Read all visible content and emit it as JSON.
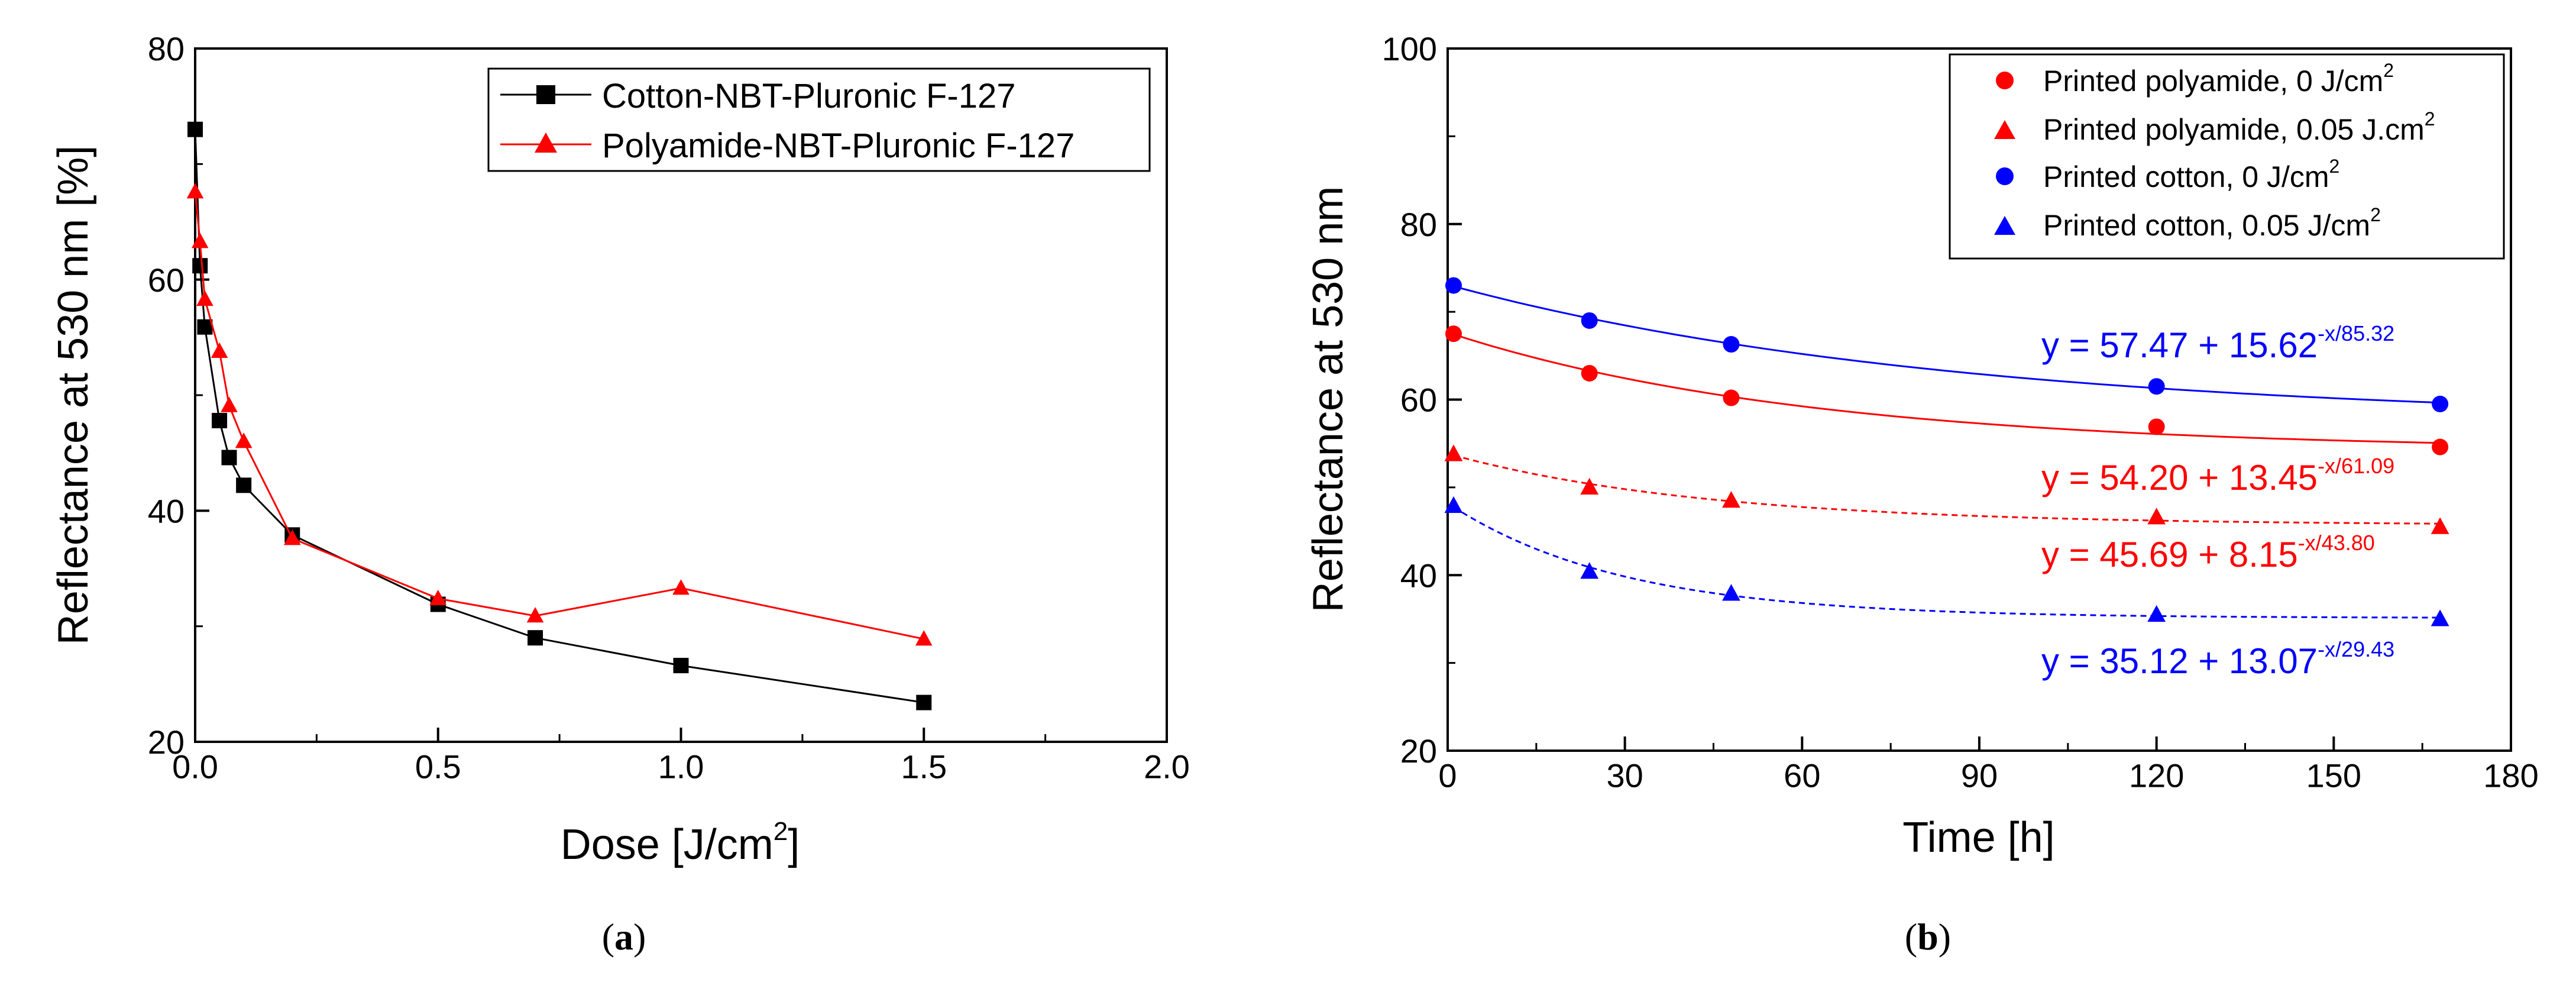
{
  "chart_data": [
    {
      "id": "a",
      "type": "line",
      "caption_letter": "a",
      "xlabel": "Dose [J/cm",
      "xlabel_sup": "2",
      "xlabel_end": "]",
      "ylabel": "Reflectance at 530 nm [%]",
      "xlim": [
        0,
        2.0
      ],
      "ylim": [
        20,
        80
      ],
      "xticks": [
        0.0,
        0.5,
        1.0,
        1.5,
        2.0
      ],
      "xtick_labels": [
        "0.0",
        "0.5",
        "1.0",
        "1.5",
        "2.0"
      ],
      "yticks": [
        20,
        40,
        60,
        80
      ],
      "ytick_labels": [
        "20",
        "40",
        "60",
        "80"
      ],
      "series": [
        {
          "name": "Cotton-NBT-Pluronic F-127",
          "color": "#000000",
          "marker": "square",
          "x": [
            0,
            0.01,
            0.02,
            0.05,
            0.07,
            0.1,
            0.2,
            0.5,
            0.7,
            1.0,
            1.5
          ],
          "y": [
            73.0,
            61.2,
            55.9,
            47.8,
            44.6,
            42.2,
            37.9,
            31.9,
            29.0,
            26.6,
            23.4
          ]
        },
        {
          "name": "Polyamide-NBT-Pluronic F-127",
          "color": "#ff0000",
          "marker": "triangle",
          "x": [
            0,
            0.01,
            0.02,
            0.05,
            0.07,
            0.1,
            0.2,
            0.5,
            0.7,
            1.0,
            1.5
          ],
          "y": [
            67.6,
            63.3,
            58.3,
            53.8,
            49.1,
            46.0,
            37.6,
            32.4,
            30.9,
            33.3,
            28.9
          ]
        }
      ]
    },
    {
      "id": "b",
      "type": "scatter",
      "caption_letter": "b",
      "xlabel": "Time [h]",
      "ylabel": "Reflectance at 530 nm",
      "xlim": [
        0,
        180
      ],
      "ylim": [
        20,
        100
      ],
      "xticks": [
        0,
        30,
        60,
        90,
        120,
        150,
        180
      ],
      "xtick_labels": [
        "0",
        "30",
        "60",
        "90",
        "120",
        "150",
        "180"
      ],
      "yticks": [
        20,
        40,
        60,
        80,
        100
      ],
      "ytick_labels": [
        "20",
        "40",
        "60",
        "80",
        "100"
      ],
      "series": [
        {
          "name": "Printed polyamide, 0 J/cm",
          "name_sup": "2",
          "color": "#ff0000",
          "marker": "circle",
          "x": [
            1,
            24,
            48,
            120,
            168
          ],
          "y": [
            67.5,
            63.0,
            60.2,
            56.9,
            54.6
          ],
          "fit": {
            "a": 54.2,
            "b": 13.45,
            "c": 61.09,
            "dash": false,
            "equation": "y = 54.20 + 13.45",
            "equation_sup": "-x/61.09"
          }
        },
        {
          "name": "Printed polyamide, 0.05 J.cm",
          "name_sup": "2",
          "color": "#ff0000",
          "marker": "triangle",
          "x": [
            1,
            24,
            48,
            120,
            168
          ],
          "y": [
            53.8,
            50.0,
            48.5,
            46.6,
            45.5
          ],
          "fit": {
            "a": 45.69,
            "b": 8.15,
            "c": 43.8,
            "dash": true,
            "equation": "y = 45.69 + 8.15",
            "equation_sup": "-x/43.80"
          }
        },
        {
          "name": "Printed cotton, 0 J/cm",
          "name_sup": "2",
          "color": "#0000ff",
          "marker": "circle",
          "x": [
            1,
            24,
            48,
            120,
            168
          ],
          "y": [
            73.0,
            69.0,
            66.3,
            61.5,
            59.5
          ],
          "fit": {
            "a": 57.47,
            "b": 15.62,
            "c": 85.32,
            "dash": false,
            "equation": "y = 57.47 + 15.62",
            "equation_sup": "-x/85.32"
          }
        },
        {
          "name": "Printed cotton, 0.05 J/cm",
          "name_sup": "2",
          "color": "#0000ff",
          "marker": "triangle",
          "x": [
            1,
            24,
            48,
            120,
            168
          ],
          "y": [
            47.9,
            40.4,
            37.9,
            35.5,
            35.0
          ],
          "fit": {
            "a": 35.12,
            "b": 13.07,
            "c": 29.43,
            "dash": true,
            "equation": "y = 35.12 + 13.07",
            "equation_sup": "-x/29.43"
          }
        }
      ]
    }
  ]
}
